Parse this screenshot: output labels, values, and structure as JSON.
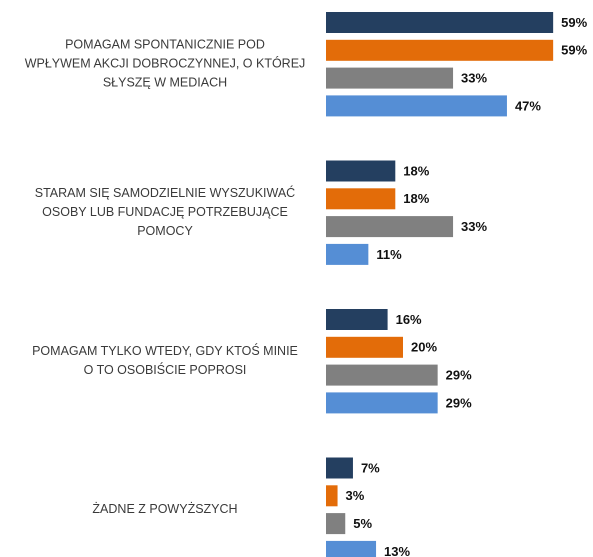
{
  "chart_data": {
    "type": "bar",
    "orientation": "horizontal",
    "categories": [
      [
        "POMAGAM SPONTANICZNIE POD",
        "WPŁYWEM AKCJI DOBROCZYNNEJ, O KTÓREJ",
        "SŁYSZĘ W MEDIACH"
      ],
      [
        "STARAM SIĘ SAMODZIELNIE WYSZUKIWAĆ",
        "OSOBY LUB FUNDACJĘ POTRZEBUJĄCE",
        "POMOCY"
      ],
      [
        "POMAGAM TYLKO WTEDY, GDY KTOŚ MINIE",
        "O TO OSOBIŚCIE POPROSI"
      ],
      [
        "ŻADNE Z POWYŻSZYCH"
      ]
    ],
    "series": [
      {
        "color": "#243f60",
        "values": [
          59,
          18,
          16,
          7
        ],
        "value_labels": [
          "59%",
          "18%",
          "16%",
          "7%"
        ]
      },
      {
        "color": "#e36c09",
        "values": [
          59,
          18,
          20,
          3
        ],
        "value_labels": [
          "59%",
          "18%",
          "20%",
          "3%"
        ]
      },
      {
        "color": "#808080",
        "values": [
          33,
          33,
          29,
          5
        ],
        "value_labels": [
          "33%",
          "33%",
          "29%",
          "5%"
        ]
      },
      {
        "color": "#558ed5",
        "values": [
          47,
          11,
          29,
          13
        ],
        "value_labels": [
          "47%",
          "11%",
          "29%",
          "13%"
        ]
      }
    ]
  }
}
